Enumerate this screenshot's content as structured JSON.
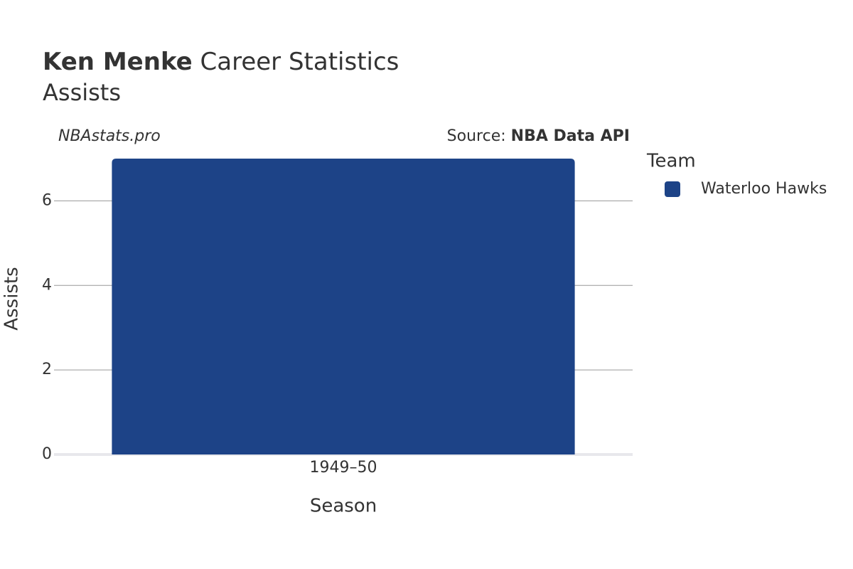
{
  "chart_data": {
    "type": "bar",
    "title_bold": "Ken Menke",
    "title": "Career Statistics",
    "subtitle": "Assists",
    "watermark": "NBAstats.pro",
    "source_label": "Source:",
    "source": "NBA Data API",
    "x_label": "Season",
    "y_label": "Assists",
    "legend_title": "Team",
    "categories": [
      "1949–50"
    ],
    "series": [
      {
        "name": "Waterloo Hawks",
        "color": "#1d4387",
        "values": [
          7
        ]
      }
    ],
    "ylim": [
      0,
      7
    ],
    "yticks": [
      0,
      2,
      4,
      6
    ],
    "grid": true
  }
}
